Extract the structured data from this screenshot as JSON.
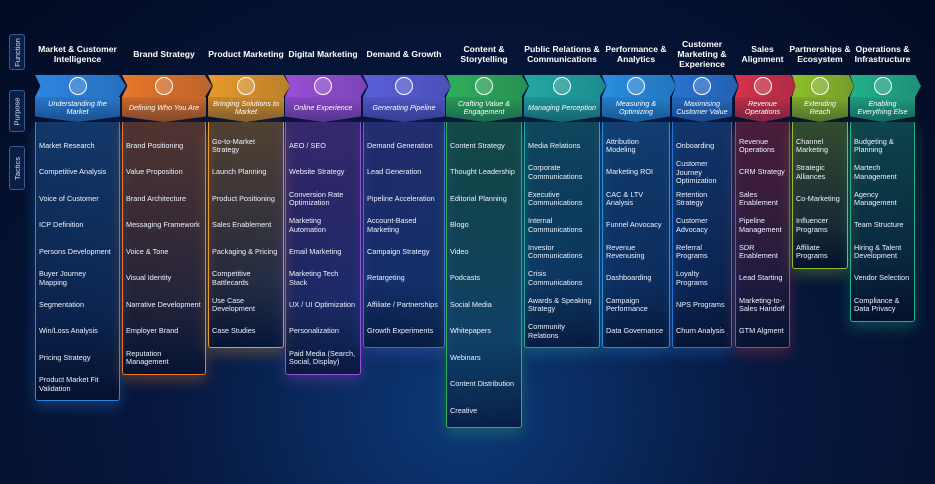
{
  "side_labels": [
    "Function",
    "Purpose",
    "Tactics"
  ],
  "columns": [
    {
      "title": "Market & Customer Intelligence",
      "purpose": "Understanding the Market",
      "color": "#2f86e0",
      "tactics": [
        "Market Research",
        "Competitive Analysis",
        "Voice of Customer",
        "ICP Definition",
        "Persons Development",
        "Buyer Journey Mapping",
        "Segmentation",
        "Win/Loss Analysis",
        "Pricing Strategy",
        "Product Market Fit Validation"
      ]
    },
    {
      "title": "Brand Strategy",
      "purpose": "Defining Who You Are",
      "color": "#e8772a",
      "tactics": [
        "Brand Positioning",
        "Value Proposition",
        "Brand Architecture",
        "Messaging Framework",
        "Voice & Tone",
        "Visual Identity",
        "Narrative Development",
        "Employer Brand",
        "Reputation Management"
      ]
    },
    {
      "title": "Product Marketing",
      "purpose": "Bringing Solutions to Market",
      "color": "#e89a2a",
      "tactics": [
        "Go-to-Market Strategy",
        "Launch Planning",
        "Product Positioning",
        "Sales Enablement",
        "Packaging & Pricing",
        "Competitive Battlecards",
        "Use Case Development",
        "Case Studies"
      ]
    },
    {
      "title": "Digital Marketing",
      "purpose": "Online Experience",
      "color": "#9a4fd6",
      "tactics": [
        "AEO / SEO",
        "Website Strategy",
        "Conversion Rate Optimization",
        "Marketing Automation",
        "Email Marketing",
        "Marketing Tech Stack",
        "UX / UI Optimization",
        "Personalization",
        "Paid Media (Search, Social, Display)"
      ]
    },
    {
      "title": "Demand & Growth",
      "purpose": "Generating Pipeline",
      "color": "#5a5fd8",
      "tactics": [
        "Demand Generation",
        "Lead Generation",
        "Pipeline Acceleration",
        "Account-Based Marketing",
        "Campaign Strategy",
        "Retargeting",
        "Affiliate / Partnerships",
        "Growth Experiments"
      ]
    },
    {
      "title": "Content & Storytelling",
      "purpose": "Crafting Value & Engagement",
      "color": "#2fae5a",
      "tactics": [
        "Content Strategy",
        "Thought Leadership",
        "Editorial Planning",
        "Blogo",
        "Video",
        "Podcasts",
        "Social Media",
        "Whitepapers",
        "Webinars",
        "Content Distribution",
        "Creative"
      ]
    },
    {
      "title": "Public Relations & Communications",
      "purpose": "Managing Perception",
      "color": "#22a7a4",
      "tactics": [
        "Media Relations",
        "Corporate Communications",
        "Executive Communications",
        "Internal Communications",
        "Investor Communications",
        "Crisis Communications",
        "Awards & Speaking Strategy",
        "Community Relations"
      ]
    },
    {
      "title": "Performance & Analytics",
      "purpose": "Measuring & Optimizing",
      "color": "#2a8ee0",
      "tactics": [
        "Attribution Modeling",
        "Marketing ROI",
        "CAC & LTV Analysis",
        "Funnel Anvocacy",
        "Revenue Revenusing",
        "Dashboarding",
        "Campaign Performance",
        "Data Governance"
      ]
    },
    {
      "title": "Customer Marketing & Experience",
      "purpose": "Maximising Customer Value",
      "color": "#2a74d0",
      "tactics": [
        "Onboarding",
        "Customer Journey Optimization",
        "Retention Strategy",
        "Customer Advocacy",
        "Referral Programs",
        "Loyalty Programs",
        "NPS Programs",
        "Churn Analysis"
      ]
    },
    {
      "title": "Sales Alignment",
      "purpose": "Revenue Operations",
      "color": "#d8324a",
      "tactics": [
        "Revenue Operations",
        "CRM Strategy",
        "Sales Enablement",
        "Pipeline Management",
        "SDR Enablement",
        "Lead Starting",
        "Marketing-to-Sales Handoff",
        "GTM Algment"
      ]
    },
    {
      "title": "Partnerships & Ecosystem",
      "purpose": "Extending Reach",
      "color": "#8fbf2a",
      "tactics": [
        "Channel Marketing",
        "Strategic Alliances",
        "Co-Marketing",
        "Influencer Programs",
        "Affiliate Programs"
      ]
    },
    {
      "title": "Operations & Infrastructure",
      "purpose": "Enabling Everything Else",
      "color": "#22b08a",
      "tactics": [
        "Budgeting & Planning",
        "Martech Management",
        "Agency Management",
        "Team Structure",
        "Hiring & Talent Development",
        "Vendor Selection",
        "Compliance & Data Privacy"
      ]
    }
  ]
}
